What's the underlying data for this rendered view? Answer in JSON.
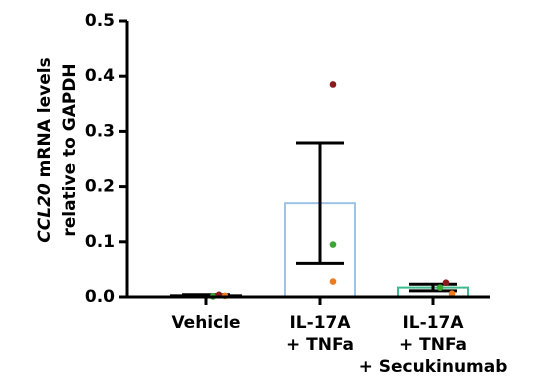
{
  "chart_data": {
    "type": "bar",
    "ylabel": {
      "italic": "CCL20",
      "text": " mRNA levels",
      "line2": "relative to GAPDH"
    },
    "categories": [
      [
        "Vehicle"
      ],
      [
        "IL-17A",
        "+ TNFa"
      ],
      [
        "IL-17A",
        "+ TNFa",
        "+ Secukinumab"
      ]
    ],
    "values": [
      0.003,
      0.17,
      0.017
    ],
    "errors": [
      0.001,
      0.109,
      0.006
    ],
    "colors": [
      "#000000",
      "#9dc3e6",
      "#3dbb8c"
    ],
    "points": {
      "colors": [
        "#3aa634",
        "#8b1a1a",
        "#f07a1e"
      ],
      "values": [
        [
          0.001,
          0.004,
          0.002
        ],
        [
          0.095,
          0.385,
          0.028
        ],
        [
          0.017,
          0.026,
          0.006
        ]
      ]
    },
    "ylim": [
      0,
      0.5
    ],
    "yticks": [
      {
        "value": 0,
        "label": "0.0"
      },
      0.1,
      0.2,
      0.3,
      0.4,
      0.5
    ]
  }
}
